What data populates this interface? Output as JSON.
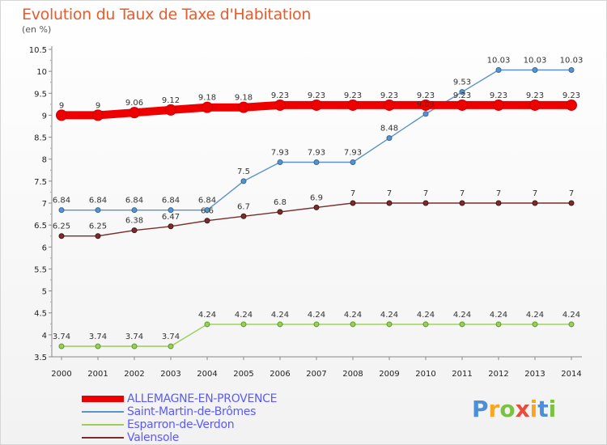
{
  "header": {
    "title": "Evolution du Taux de Taxe d'Habitation",
    "unit": "(en %)"
  },
  "chart_data": {
    "type": "line",
    "title": "Evolution du Taux de Taxe d'Habitation",
    "ylabel": "(en %)",
    "xlabel": "",
    "x": [
      "2000",
      "2001",
      "2002",
      "2003",
      "2004",
      "2005",
      "2006",
      "2007",
      "2008",
      "2009",
      "2010",
      "2011",
      "2012",
      "2013",
      "2014"
    ],
    "ylim": [
      3.5,
      10.5
    ],
    "yticks": [
      "3.5",
      "4",
      "4.5",
      "5",
      "5.5",
      "6",
      "6.5",
      "7",
      "7.5",
      "8",
      "8.5",
      "9",
      "9.5",
      "10",
      "10.5"
    ],
    "grid": false,
    "legend": "bottom-left",
    "series": [
      {
        "name": "ALLEMAGNE-EN-PROVENCE",
        "color": "#ee0000",
        "values": [
          9,
          9,
          9.06,
          9.12,
          9.18,
          9.18,
          9.23,
          9.23,
          9.23,
          9.23,
          9.23,
          9.23,
          9.23,
          9.23,
          9.23
        ],
        "labels": [
          "9",
          "9",
          "9.06",
          "9.12",
          "9.18",
          "9.18",
          "9.23",
          "9.23",
          "9.23",
          "9.23",
          "9.23",
          "9.23",
          "9.23",
          "9.23",
          "9.23"
        ]
      },
      {
        "name": "Saint-Martin-de-Brômes",
        "color": "#5b93c8",
        "values": [
          6.84,
          6.84,
          6.84,
          6.84,
          6.84,
          7.5,
          7.93,
          7.93,
          7.93,
          8.48,
          9.03,
          9.53,
          10.03,
          10.03,
          10.03
        ],
        "labels": [
          "6.84",
          "6.84",
          "6.84",
          "6.84",
          "6.84",
          "7.5",
          "7.93",
          "7.93",
          "7.93",
          "8.48",
          "9.03",
          "9.53",
          "10.03",
          "10.03",
          "10.03"
        ]
      },
      {
        "name": "Esparron-de-Verdon",
        "color": "#9acd5a",
        "values": [
          3.74,
          3.74,
          3.74,
          3.74,
          4.24,
          4.24,
          4.24,
          4.24,
          4.24,
          4.24,
          4.24,
          4.24,
          4.24,
          4.24,
          4.24
        ],
        "labels": [
          "3.74",
          "3.74",
          "3.74",
          "3.74",
          "4.24",
          "4.24",
          "4.24",
          "4.24",
          "4.24",
          "4.24",
          "4.24",
          "4.24",
          "4.24",
          "4.24",
          "4.24"
        ]
      },
      {
        "name": "Valensole",
        "color": "#7a2d2d",
        "values": [
          6.25,
          6.25,
          6.38,
          6.47,
          6.6,
          6.7,
          6.8,
          6.9,
          7,
          7,
          7,
          7,
          7,
          7,
          7
        ],
        "labels": [
          "6.25",
          "6.25",
          "6.38",
          "6.47",
          "6.6",
          "6.7",
          "6.8",
          "6.9",
          "7",
          "7",
          "7",
          "7",
          "7",
          "7",
          "7"
        ]
      }
    ]
  },
  "logo": {
    "letters": [
      "P",
      "r",
      "o",
      "x",
      "i",
      "t",
      "i"
    ],
    "colors": [
      "#4a8fd8",
      "#f5a623",
      "#7cc242",
      "#e84c3d",
      "#f5a623",
      "#4a8fd8",
      "#7cc242"
    ]
  }
}
